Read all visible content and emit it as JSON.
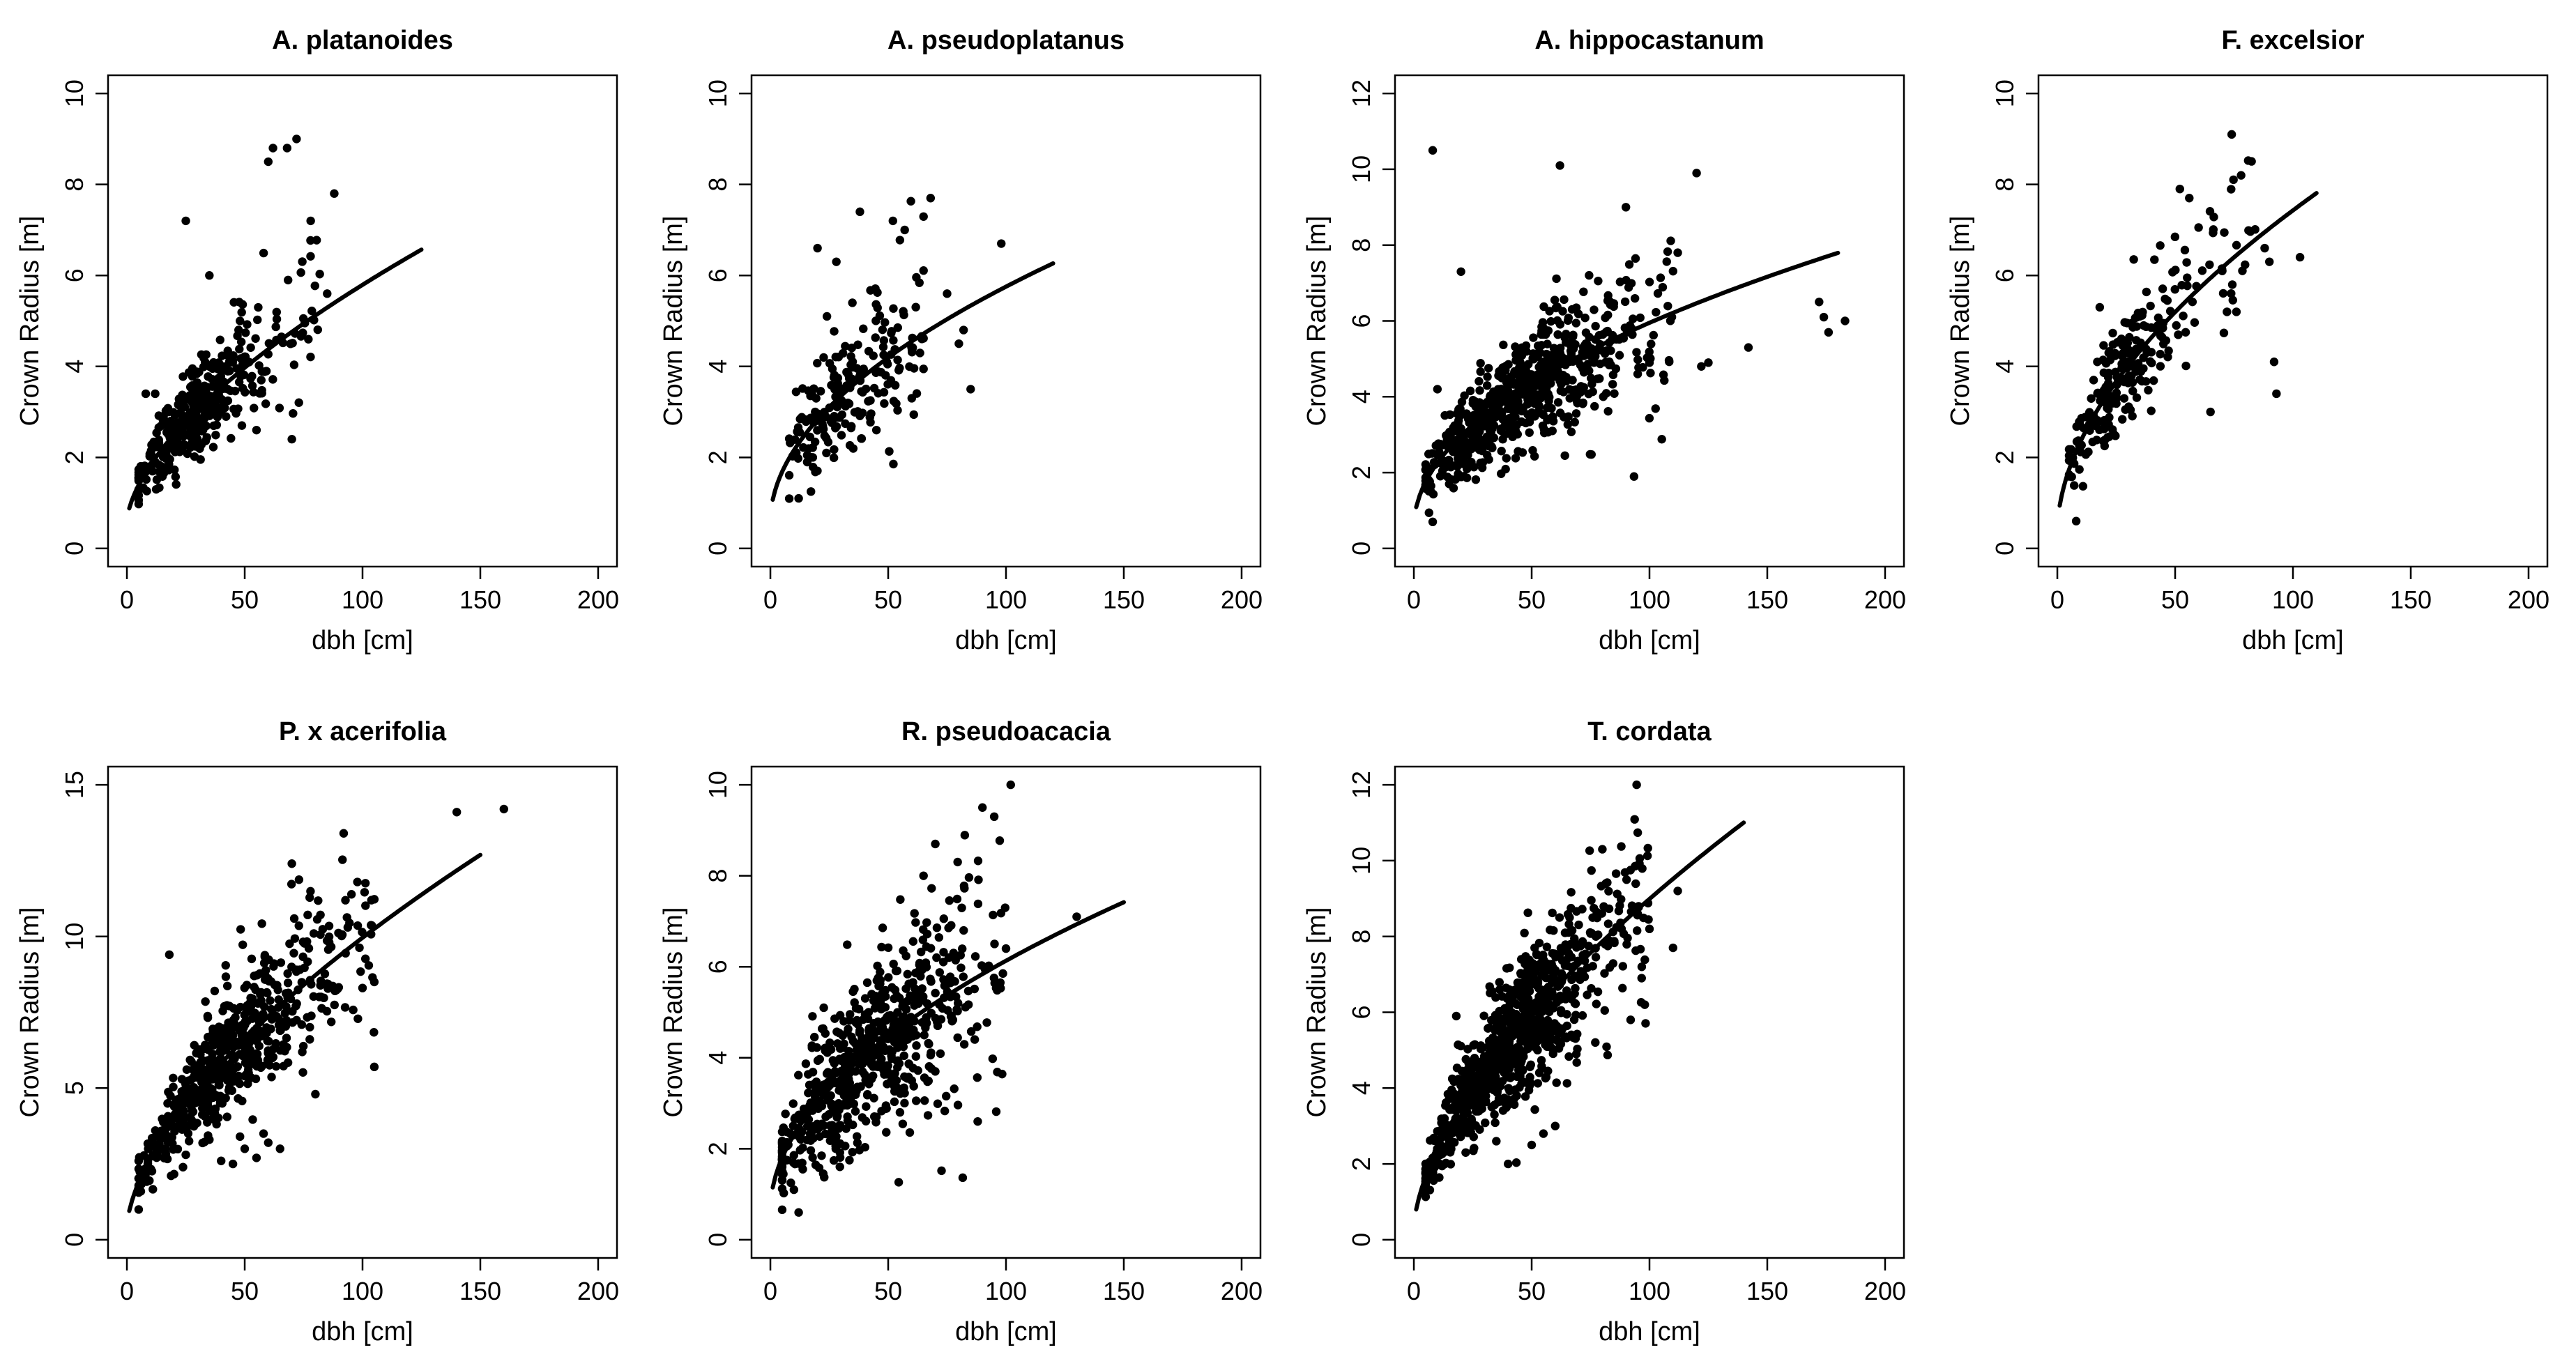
{
  "figure": {
    "rows": 2,
    "cols": 4
  },
  "chart_data": [
    {
      "type": "scatter",
      "title": "A. platanoides",
      "xlabel": "dbh [cm]",
      "ylabel": "Crown Radius [m]",
      "xlim": [
        0,
        200
      ],
      "ylim": [
        0,
        10
      ],
      "xticks": [
        0,
        50,
        100,
        150,
        200
      ],
      "yticks": [
        0,
        2,
        4,
        6,
        8,
        10
      ],
      "fit": {
        "a": 0.58,
        "b": 0.3,
        "c": 0.62,
        "xmax": 125
      },
      "cloud": {
        "n": 380,
        "xmin": 5,
        "xmax": 85,
        "xmode": 28,
        "spread": 0.17,
        "seed": 11
      },
      "points": [
        [
          8,
          3.4
        ],
        [
          12,
          3.4
        ],
        [
          25,
          7.2
        ],
        [
          70,
          2.4
        ],
        [
          55,
          2.6
        ],
        [
          62,
          8.8
        ],
        [
          72,
          9.0
        ],
        [
          68,
          8.8
        ],
        [
          60,
          8.5
        ],
        [
          88,
          7.8
        ],
        [
          85,
          5.6
        ],
        [
          78,
          7.2
        ],
        [
          48,
          5.0
        ],
        [
          40,
          3.0
        ],
        [
          35,
          6.0
        ]
      ]
    },
    {
      "type": "scatter",
      "title": "A. pseudoplatanus",
      "xlabel": "dbh [cm]",
      "ylabel": "Crown Radius [m]",
      "xlim": [
        0,
        200
      ],
      "ylim": [
        0,
        10
      ],
      "xticks": [
        0,
        50,
        100,
        150,
        200
      ],
      "yticks": [
        0,
        2,
        4,
        6,
        8,
        10
      ],
      "fit": {
        "a": 0.6,
        "b": 0.47,
        "c": 0.52,
        "xmax": 120
      },
      "cloud": {
        "n": 200,
        "xmin": 8,
        "xmax": 65,
        "xmode": 35,
        "spread": 0.2,
        "seed": 23
      },
      "points": [
        [
          12,
          1.1
        ],
        [
          20,
          6.6
        ],
        [
          28,
          6.3
        ],
        [
          38,
          7.4
        ],
        [
          52,
          7.2
        ],
        [
          57,
          7.0
        ],
        [
          68,
          7.7
        ],
        [
          82,
          4.8
        ],
        [
          85,
          3.5
        ],
        [
          80,
          4.5
        ],
        [
          98,
          6.7
        ],
        [
          75,
          5.6
        ],
        [
          60,
          3.3
        ],
        [
          45,
          2.6
        ],
        [
          24,
          5.1
        ],
        [
          18,
          2.0
        ]
      ]
    },
    {
      "type": "scatter",
      "title": "A. hippocastanum",
      "xlabel": "dbh [cm]",
      "ylabel": "Crown Radius [m]",
      "xlim": [
        0,
        200
      ],
      "ylim": [
        0,
        12
      ],
      "xticks": [
        0,
        50,
        100,
        150,
        200
      ],
      "yticks": [
        0,
        2,
        4,
        6,
        8,
        10,
        12
      ],
      "fit": {
        "a": 0.55,
        "b": 0.54,
        "c": 0.5,
        "xmax": 180
      },
      "cloud": {
        "n": 650,
        "xmin": 5,
        "xmax": 110,
        "xmode": 45,
        "spread": 0.18,
        "seed": 37
      },
      "points": [
        [
          8,
          10.5
        ],
        [
          20,
          7.3
        ],
        [
          62,
          10.1
        ],
        [
          90,
          9.0
        ],
        [
          112,
          7.8
        ],
        [
          120,
          9.9
        ],
        [
          122,
          4.8
        ],
        [
          125,
          4.9
        ],
        [
          142,
          5.3
        ],
        [
          172,
          6.5
        ],
        [
          174,
          6.1
        ],
        [
          176,
          5.7
        ],
        [
          183,
          6.0
        ],
        [
          10,
          4.2
        ],
        [
          8,
          0.7
        ],
        [
          15,
          1.7
        ],
        [
          95,
          4.6
        ],
        [
          100,
          4.9
        ]
      ]
    },
    {
      "type": "scatter",
      "title": "F. excelsior",
      "xlabel": "dbh [cm]",
      "ylabel": "Crown Radius [m]",
      "xlim": [
        0,
        200
      ],
      "ylim": [
        0,
        10
      ],
      "xticks": [
        0,
        50,
        100,
        150,
        200
      ],
      "yticks": [
        0,
        2,
        4,
        6,
        8,
        10
      ],
      "fit": {
        "a": 0.38,
        "b": 0.56,
        "c": 0.55,
        "xmax": 110
      },
      "cloud": {
        "n": 230,
        "xmin": 5,
        "xmax": 85,
        "xmode": 28,
        "spread": 0.16,
        "seed": 53
      },
      "points": [
        [
          8,
          0.6
        ],
        [
          18,
          5.3
        ],
        [
          52,
          7.9
        ],
        [
          56,
          7.7
        ],
        [
          74,
          9.1
        ],
        [
          78,
          8.2
        ],
        [
          88,
          6.6
        ],
        [
          90,
          6.3
        ],
        [
          93,
          3.4
        ],
        [
          92,
          4.1
        ],
        [
          103,
          6.4
        ],
        [
          65,
          3.0
        ],
        [
          72,
          5.2
        ],
        [
          76,
          5.2
        ],
        [
          70,
          6.1
        ]
      ]
    },
    {
      "type": "scatter",
      "title": "P. x acerifolia",
      "xlabel": "dbh [cm]",
      "ylabel": "Crown Radius [m]",
      "xlim": [
        0,
        200
      ],
      "ylim": [
        0,
        15
      ],
      "xticks": [
        0,
        50,
        100,
        150,
        200
      ],
      "yticks": [
        0,
        5,
        10,
        15
      ],
      "fit": {
        "a": 0.4,
        "b": 0.55,
        "c": 0.62,
        "xmax": 150
      },
      "cloud": {
        "n": 600,
        "xmin": 5,
        "xmax": 105,
        "xmode": 42,
        "spread": 0.17,
        "seed": 71
      },
      "points": [
        [
          5,
          2.6
        ],
        [
          18,
          9.4
        ],
        [
          70,
          12.4
        ],
        [
          92,
          13.4
        ],
        [
          140,
          14.1
        ],
        [
          160,
          14.2
        ],
        [
          105,
          5.7
        ],
        [
          80,
          4.8
        ],
        [
          100,
          8.3
        ],
        [
          105,
          8.5
        ],
        [
          40,
          2.6
        ],
        [
          45,
          2.5
        ],
        [
          50,
          3.0
        ],
        [
          55,
          2.7
        ],
        [
          60,
          3.2
        ],
        [
          65,
          3.0
        ],
        [
          35,
          3.3
        ],
        [
          25,
          2.8
        ],
        [
          58,
          3.5
        ],
        [
          48,
          3.4
        ]
      ]
    },
    {
      "type": "scatter",
      "title": "R. pseudoacacia",
      "xlabel": "dbh [cm]",
      "ylabel": "Crown Radius [m]",
      "xlim": [
        0,
        200
      ],
      "ylim": [
        0,
        10
      ],
      "xticks": [
        0,
        50,
        100,
        150,
        200
      ],
      "yticks": [
        0,
        2,
        4,
        6,
        8,
        10
      ],
      "fit": {
        "a": 0.65,
        "b": 0.5,
        "c": 0.52,
        "xmax": 150
      },
      "cloud": {
        "n": 650,
        "xmin": 5,
        "xmax": 100,
        "xmode": 42,
        "spread": 0.22,
        "seed": 89
      },
      "points": [
        [
          12,
          0.6
        ],
        [
          10,
          1.1
        ],
        [
          102,
          10.0
        ],
        [
          90,
          9.5
        ],
        [
          95,
          9.3
        ],
        [
          88,
          2.6
        ],
        [
          130,
          7.1
        ],
        [
          100,
          6.4
        ],
        [
          70,
          8.7
        ],
        [
          65,
          8.0
        ],
        [
          45,
          2.7
        ],
        [
          55,
          2.8
        ],
        [
          60,
          3.5
        ]
      ]
    },
    {
      "type": "scatter",
      "title": "T. cordata",
      "xlabel": "dbh [cm]",
      "ylabel": "Crown Radius [m]",
      "xlim": [
        0,
        200
      ],
      "ylim": [
        0,
        12
      ],
      "xticks": [
        0,
        50,
        100,
        150,
        200
      ],
      "yticks": [
        0,
        2,
        4,
        6,
        8,
        10,
        12
      ],
      "fit": {
        "a": 0.3,
        "b": 0.5,
        "c": 0.62,
        "xmax": 140
      },
      "cloud": {
        "n": 900,
        "xmin": 5,
        "xmax": 100,
        "xmode": 38,
        "spread": 0.17,
        "seed": 97
      },
      "points": [
        [
          80,
          10.3
        ],
        [
          95,
          8.6
        ],
        [
          100,
          8.2
        ],
        [
          110,
          7.7
        ],
        [
          112,
          9.2
        ],
        [
          98,
          6.2
        ],
        [
          92,
          5.8
        ],
        [
          18,
          5.9
        ],
        [
          22,
          2.3
        ],
        [
          40,
          2.0
        ],
        [
          50,
          2.5
        ],
        [
          55,
          2.8
        ],
        [
          60,
          3.0
        ],
        [
          35,
          2.6
        ]
      ]
    }
  ]
}
